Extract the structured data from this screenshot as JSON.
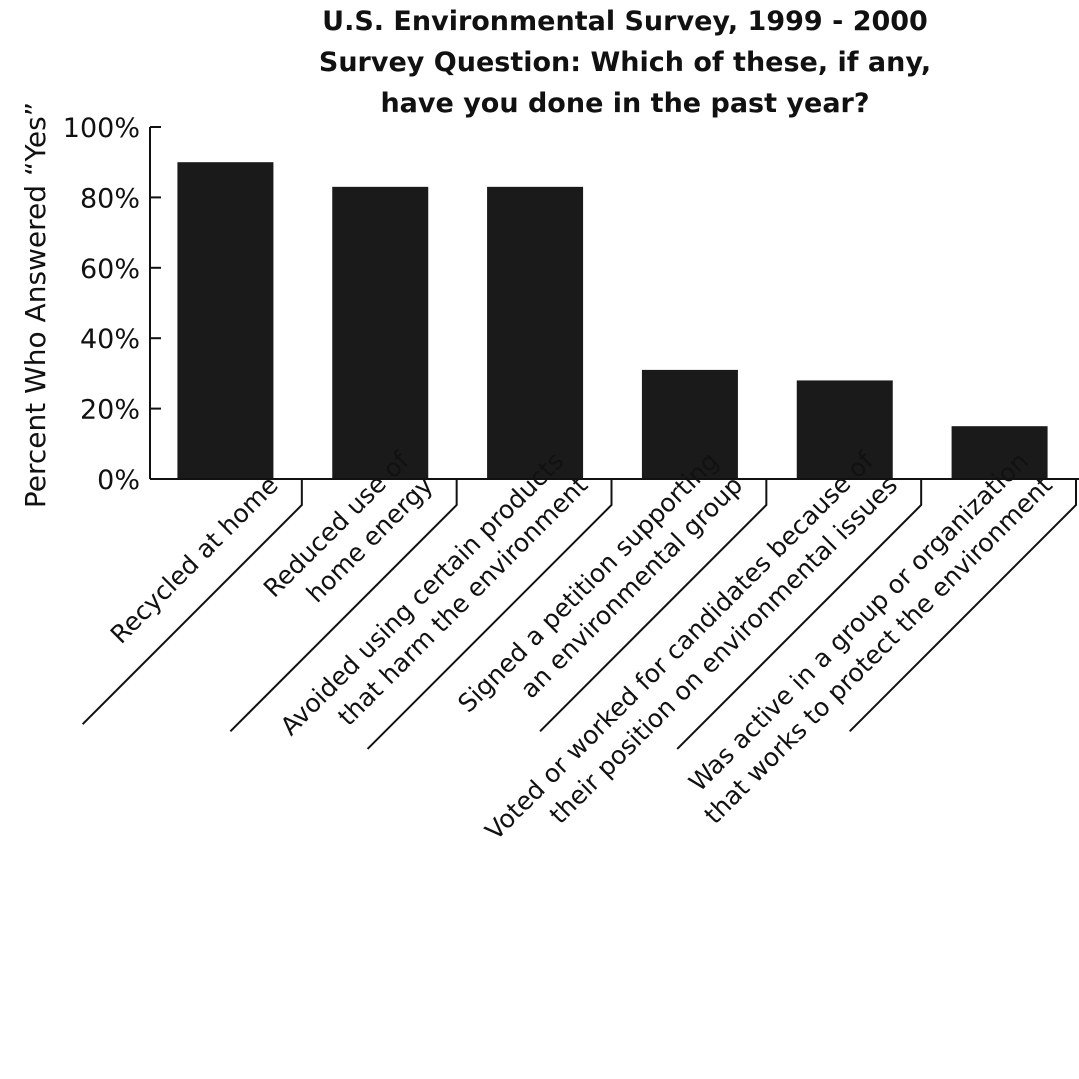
{
  "chart_data": {
    "type": "bar",
    "title_lines": [
      "U.S. Environmental Survey, 1999 - 2000",
      "Survey Question: Which of these, if any,",
      "have you done in the past year?"
    ],
    "ylabel": "Percent Who Answered “Yes”",
    "xlabel": "",
    "ylim": [
      0,
      100
    ],
    "yticks": [
      "0%",
      "20%",
      "40%",
      "60%",
      "80%",
      "100%"
    ],
    "categories": [
      [
        "Recycled at home"
      ],
      [
        "Reduced use of",
        "home energy"
      ],
      [
        "Avoided using certain products",
        "that harm the environment"
      ],
      [
        "Signed a petition supporting",
        "an environmental group"
      ],
      [
        "Voted or worked for candidates because of",
        "their position on environmental issues"
      ],
      [
        "Was active in a group or organization",
        "that works to protect the environment"
      ]
    ],
    "values": [
      90,
      83,
      83,
      31,
      28,
      15
    ],
    "grid": false,
    "legend": "none",
    "bar_color": "#1a1a1a"
  }
}
